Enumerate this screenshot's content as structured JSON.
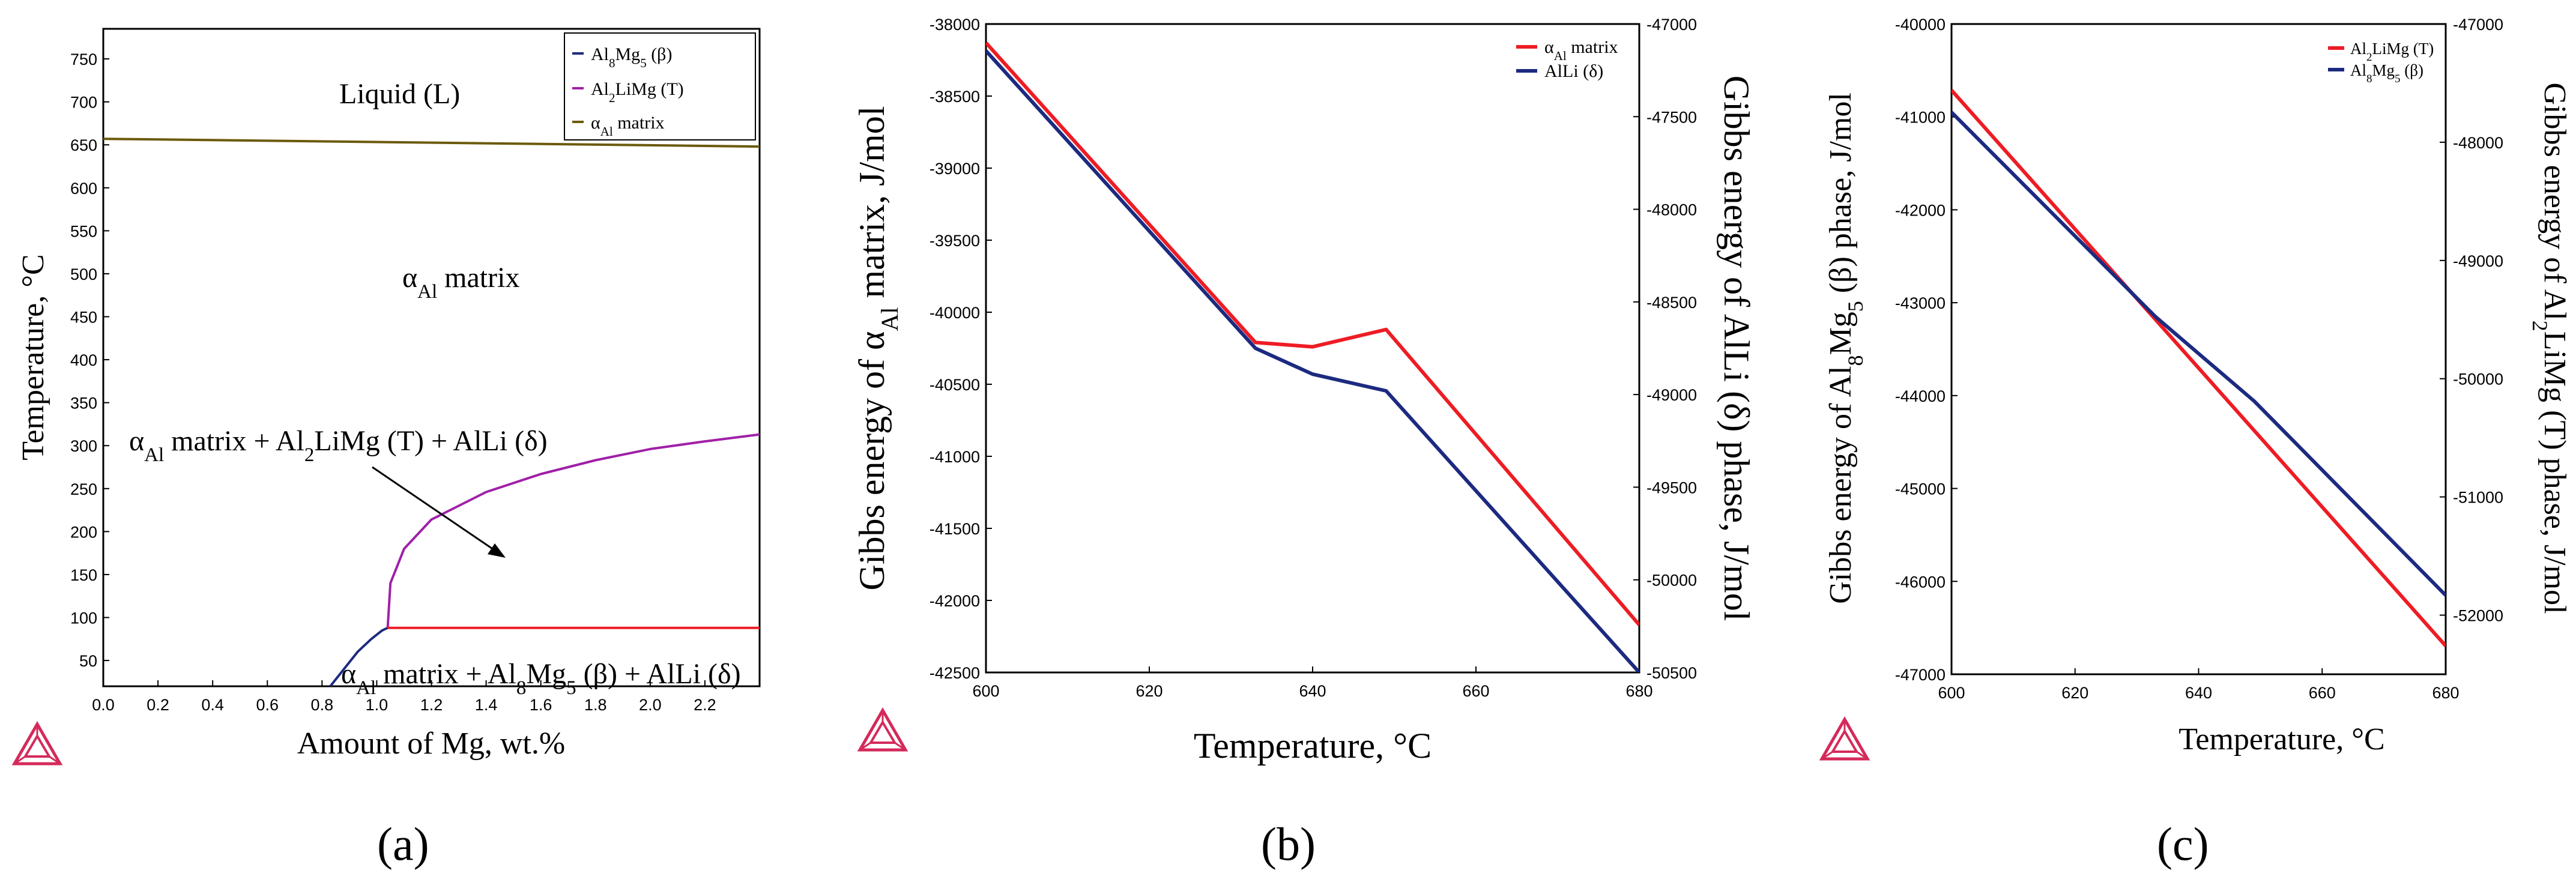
{
  "figure": {
    "panel_labels": [
      "(a)",
      "(b)",
      "(c)"
    ]
  },
  "colors": {
    "navy": "#1c2a80",
    "purple": "#a020a8",
    "olive": "#6b5a0a",
    "red": "#ee1c24",
    "logo": "#d42a5a"
  },
  "chart_data": [
    {
      "type": "line",
      "id": "a",
      "title": "",
      "xlabel": "Amount of Mg, wt.%",
      "ylabel": "Temperature, °C",
      "xlim": [
        0,
        2.4
      ],
      "ylim": [
        20,
        785
      ],
      "xticks": [
        0.0,
        0.2,
        0.4,
        0.6,
        0.8,
        1.0,
        1.2,
        1.4,
        1.6,
        1.8,
        2.0,
        2.2
      ],
      "xtick_labels": [
        "0.0",
        "0.2",
        "0.4",
        "0.6",
        "0.8",
        "1.0",
        "1.2",
        "1.4",
        "1.6",
        "1.8",
        "2.0",
        "2.2"
      ],
      "yticks": [
        50,
        100,
        150,
        200,
        250,
        300,
        350,
        400,
        450,
        500,
        550,
        600,
        650,
        700,
        750
      ],
      "ytick_labels": [
        "50",
        "100",
        "150",
        "200",
        "250",
        "300",
        "350",
        "400",
        "450",
        "500",
        "550",
        "600",
        "650",
        "700",
        "750"
      ],
      "legend_position": "top-right",
      "legend": [
        {
          "base": "Al",
          "sub1": "8",
          "mid": "Mg",
          "sub2": "5",
          "tail": " (β)",
          "color": "#1c2a80"
        },
        {
          "base": "Al",
          "sub1": "2",
          "mid": "LiMg",
          "sub2": "",
          "tail": " (T)",
          "color": "#a020a8"
        },
        {
          "base": "α",
          "sub1": "Al",
          "mid": " matrix",
          "sub2": "",
          "tail": "",
          "color": "#6b5a0a"
        }
      ],
      "series": [
        {
          "name": "Al8Mg5 (β)",
          "color": "#1c2a80",
          "x": [
            0.83,
            0.88,
            0.93,
            0.98,
            1.02,
            1.04
          ],
          "y": [
            20,
            40,
            60,
            75,
            85,
            88
          ]
        },
        {
          "name": "Al2LiMg (T)",
          "color": "#a020a8",
          "x": [
            1.04,
            1.05,
            1.1,
            1.2,
            1.4,
            1.6,
            1.8,
            2.0,
            2.2,
            2.4
          ],
          "y": [
            88,
            140,
            180,
            214,
            246,
            267,
            283,
            296,
            305,
            313
          ]
        },
        {
          "name": "αAl matrix",
          "color": "#6b5a0a",
          "x": [
            0,
            2.4
          ],
          "y": [
            657,
            648
          ]
        },
        {
          "name": "AlLi (δ) boundary",
          "color": "#ee1c24",
          "x": [
            1.04,
            2.4
          ],
          "y": [
            88,
            88
          ]
        }
      ],
      "annotations": {
        "liquid": "Liquid (L)",
        "alpha_matrix": {
          "base": "α",
          "sub": "Al",
          "tail": " matrix"
        },
        "three_phase": {
          "p1": "α",
          "s1": "Al",
          "p2": " matrix + Al",
          "s2": "2",
          "p3": "LiMg (T) + AlLi (δ)"
        },
        "bottom_phase": {
          "p1": "α",
          "s1": "Al",
          "p2": " matrix + Al",
          "s2": "8",
          "p3": "Mg",
          "s3": "5",
          "p4": " (β) + AlLi (δ)"
        }
      }
    },
    {
      "type": "line",
      "id": "b",
      "title": "",
      "xlabel": "Temperature, °C",
      "ylabel_left": {
        "p1": "Gibbs energy of α",
        "s1": "Al",
        "p2": " matrix, J/mol"
      },
      "ylabel_right": "Gibbs energy of AlLi (δ) phase, J/mol",
      "xlim": [
        600,
        680
      ],
      "ylim_left": [
        -42500,
        -38000
      ],
      "ylim_right": [
        -50500,
        -47000
      ],
      "xticks": [
        600,
        620,
        640,
        660,
        680
      ],
      "xtick_labels": [
        "600",
        "620",
        "640",
        "660",
        "680"
      ],
      "yticks_left": [
        -38000,
        -38500,
        -39000,
        -39500,
        -40000,
        -40500,
        -41000,
        -41500,
        -42000,
        -42500
      ],
      "ytick_labels_left": [
        "-38000",
        "-38500",
        "-39000",
        "-39500",
        "-40000",
        "-40500",
        "-41000",
        "-41500",
        "-42000",
        "-42500"
      ],
      "yticks_right": [
        -47000,
        -47500,
        -48000,
        -48500,
        -49000,
        -49500,
        -50000,
        -50500
      ],
      "ytick_labels_right": [
        "-47000",
        "-47500",
        "-48000",
        "-48500",
        "-49000",
        "-49500",
        "-50000",
        "-50500"
      ],
      "legend_position": "top-right",
      "legend": [
        {
          "base": "α",
          "sub": "Al",
          "tail": " matrix",
          "color": "#ee1c24"
        },
        {
          "base": "AlLi (δ)",
          "sub": "",
          "tail": "",
          "color": "#1c2a80"
        }
      ],
      "series": [
        {
          "name": "αAl matrix",
          "axis": "left",
          "color": "#ee1c24",
          "x": [
            600,
            633,
            640,
            649,
            680
          ],
          "y": [
            -38130,
            -40210,
            -40240,
            -40120,
            -42170
          ]
        },
        {
          "name": "AlLi (δ)",
          "axis": "right",
          "color": "#1c2a80",
          "x": [
            600,
            633,
            640,
            649,
            680
          ],
          "y": [
            -47145,
            -48750,
            -48890,
            -48980,
            -50500
          ]
        }
      ]
    },
    {
      "type": "line",
      "id": "c",
      "title": "",
      "xlabel": "Temperature, °C",
      "ylabel_left": {
        "p1": "Gibbs energy of Al",
        "s1": "8",
        "p2": "Mg",
        "s2": "5",
        "p3": " (β) phase, J/mol"
      },
      "ylabel_right": {
        "p1": "Gibbs energy of Al",
        "s1": "2",
        "p2": "LiMg (T) phase, J/mol"
      },
      "xlim": [
        600,
        680
      ],
      "ylim_left": [
        -47000,
        -40000
      ],
      "ylim_right": [
        -52500,
        -47000
      ],
      "xticks": [
        600,
        620,
        640,
        660,
        680
      ],
      "xtick_labels": [
        "600",
        "620",
        "640",
        "660",
        "680"
      ],
      "yticks_left": [
        -40000,
        -41000,
        -42000,
        -43000,
        -44000,
        -45000,
        -46000,
        -47000
      ],
      "ytick_labels_left": [
        "-40000",
        "-41000",
        "-42000",
        "-43000",
        "-44000",
        "-45000",
        "-46000",
        "-47000"
      ],
      "yticks_right": [
        -47000,
        -48000,
        -49000,
        -50000,
        -51000,
        -52000
      ],
      "ytick_labels_right": [
        "-47000",
        "-48000",
        "-49000",
        "-50000",
        "-51000",
        "-52000"
      ],
      "legend_position": "top-right",
      "legend": [
        {
          "p1": "Al",
          "s1": "2",
          "p2": "LiMg (T)",
          "s2": "",
          "p3": "",
          "color": "#ee1c24"
        },
        {
          "p1": "Al",
          "s1": "8",
          "p2": "Mg",
          "s2": "5",
          "p3": " (β)",
          "color": "#1c2a80"
        }
      ],
      "series": [
        {
          "name": "Al2LiMg (T)",
          "axis": "right",
          "color": "#ee1c24",
          "x": [
            600,
            680
          ],
          "y": [
            -47560,
            -52260
          ]
        },
        {
          "name": "Al8Mg5 (β)",
          "axis": "left",
          "color": "#1c2a80",
          "x": [
            600,
            633,
            649,
            680
          ],
          "y": [
            -40950,
            -43150,
            -44060,
            -46150
          ]
        }
      ]
    }
  ]
}
